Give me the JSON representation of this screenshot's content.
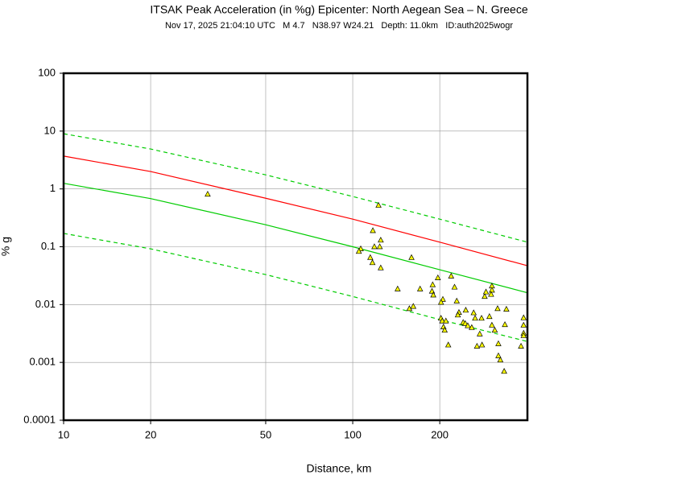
{
  "chart_data": {
    "type": "scatter",
    "title": "ITSAK Peak Acceleration (in %g) Epicenter: North Aegean Sea – N. Greece",
    "subtitle": "Nov 17, 2025 21:04:10 UTC   M 4.7   N38.97 W24.21   Depth: 11.0km   ID:auth2025wogr",
    "x_label": "Distance, km",
    "y_label": "% g",
    "xscale": "log",
    "yscale": "log",
    "grid": true,
    "xlim": [
      10,
      402
    ],
    "ylim": [
      0.0001,
      100
    ],
    "xticks": [
      10,
      20,
      50,
      100,
      200
    ],
    "yticks": [
      0.0001,
      0.001,
      0.01,
      0.1,
      1,
      10,
      100
    ],
    "color": "#ffff00",
    "x": [
      31.5,
      122.8,
      117.4,
      125,
      118.8,
      124,
      106.6,
      105,
      115,
      159.7,
      117,
      125,
      143,
      171,
      189,
      197,
      219,
      188,
      190,
      225,
      205,
      202,
      229,
      157,
      162,
      233,
      246,
      231,
      262,
      265,
      286,
      289,
      303,
      303,
      301,
      279,
      297,
      317,
      340,
      202,
      204,
      210,
      206,
      208,
      241,
      245,
      250,
      258,
      303,
      310,
      336,
      390,
      390,
      390,
      390,
      382,
      275,
      269,
      280,
      214,
      319,
      319,
      324,
      334
    ],
    "y": [
      0.81,
      0.52,
      0.19,
      0.13,
      0.1,
      0.1,
      0.092,
      0.083,
      0.065,
      0.065,
      0.053,
      0.043,
      0.0186,
      0.0186,
      0.022,
      0.029,
      0.031,
      0.017,
      0.0146,
      0.02,
      0.0123,
      0.0109,
      0.0115,
      0.0085,
      0.0093,
      0.0073,
      0.008,
      0.0066,
      0.0072,
      0.0058,
      0.0138,
      0.0165,
      0.0209,
      0.0177,
      0.015,
      0.0058,
      0.0062,
      0.0085,
      0.0083,
      0.0058,
      0.0052,
      0.0052,
      0.0041,
      0.0036,
      0.0049,
      0.0047,
      0.0043,
      0.004,
      0.0044,
      0.0036,
      0.0045,
      0.0059,
      0.0044,
      0.0032,
      0.0029,
      0.0019,
      0.0031,
      0.0019,
      0.002,
      0.002,
      0.0021,
      0.0013,
      0.0011,
      0.0007
    ],
    "line_x": [
      10,
      20,
      50,
      100,
      200,
      402
    ],
    "lines": [
      {
        "color": "#00cc00",
        "dash": true,
        "values": [
          9,
          4.9,
          1.75,
          0.74,
          0.3,
          0.12
        ]
      },
      {
        "color": "#ff0000",
        "dash": false,
        "values": [
          3.7,
          2.0,
          0.69,
          0.3,
          0.12,
          0.047
        ]
      },
      {
        "color": "#00cc00",
        "dash": false,
        "values": [
          1.25,
          0.68,
          0.24,
          0.1,
          0.04,
          0.016
        ]
      },
      {
        "color": "#00cc00",
        "dash": true,
        "values": [
          0.17,
          0.092,
          0.033,
          0.0138,
          0.0055,
          0.0023
        ]
      }
    ]
  }
}
